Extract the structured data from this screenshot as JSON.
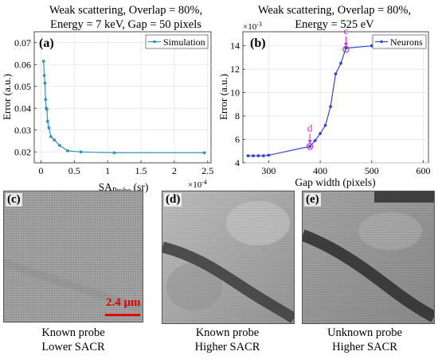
{
  "chart_data": [
    {
      "type": "line",
      "panel_label": "(a)",
      "title": [
        "Weak scattering, Overlap = 80%,",
        "Energy = 7 keV, Gap = 50 pixels"
      ],
      "xlabel_main": "SA",
      "xlabel_sub": "Probe",
      "xlabel_unit": "(sr)",
      "ylabel": "Error (a.u.)",
      "x_multiplier": "×10",
      "x_multiplier_exp": "-4",
      "xlim": [
        -0.1,
        2.55
      ],
      "ylim": [
        0.015,
        0.075
      ],
      "xticks": [
        0,
        0.5,
        1,
        1.5,
        2,
        2.5
      ],
      "xtick_labels": [
        "0",
        "0.5",
        "1",
        "1.5",
        "2",
        "2.5"
      ],
      "yticks": [
        0.02,
        0.03,
        0.04,
        0.05,
        0.06,
        0.07
      ],
      "ytick_labels": [
        "0.02",
        "0.03",
        "0.04",
        "0.05",
        "0.06",
        "0.07"
      ],
      "legend_position": "top-right",
      "series": [
        {
          "name": "Simulation",
          "color": "#2a93c9",
          "x": [
            0.04,
            0.05,
            0.06,
            0.07,
            0.08,
            0.09,
            0.1,
            0.12,
            0.15,
            0.2,
            0.28,
            0.4,
            0.6,
            1.1,
            2.45
          ],
          "y": [
            0.0615,
            0.055,
            0.0515,
            0.044,
            0.04,
            0.0395,
            0.034,
            0.031,
            0.027,
            0.0255,
            0.023,
            0.0205,
            0.02,
            0.0196,
            0.0196
          ]
        }
      ]
    },
    {
      "type": "line",
      "panel_label": "(b)",
      "title": [
        "Weak scattering, Overlap = 80%,",
        "Energy = 525 eV"
      ],
      "xlabel": "Gap width (pixels)",
      "ylabel": "Error (a.u.)",
      "y_multiplier": "×10",
      "y_multiplier_exp": "-3",
      "xlim": [
        250,
        610
      ],
      "ylim": [
        4,
        15.2
      ],
      "xticks": [
        300,
        400,
        500,
        600
      ],
      "xtick_labels": [
        "300",
        "400",
        "500",
        "600"
      ],
      "yticks": [
        4,
        6,
        8,
        10,
        12,
        14
      ],
      "ytick_labels": [
        "4",
        "6",
        "8",
        "10",
        "12",
        "14"
      ],
      "legend_position": "top-right",
      "series": [
        {
          "name": "Neurons",
          "color": "#3344dd",
          "x": [
            260,
            270,
            280,
            290,
            300,
            380,
            390,
            400,
            410,
            420,
            430,
            440,
            450,
            500,
            550,
            600
          ],
          "y": [
            4.6,
            4.6,
            4.6,
            4.6,
            4.65,
            5.4,
            5.9,
            6.5,
            7.2,
            8.8,
            11.6,
            12.5,
            13.8,
            14.0,
            14.0,
            14.0
          ]
        }
      ],
      "annotations": [
        {
          "label": "d",
          "x": 380,
          "y": 5.4,
          "color": "#cc22cc"
        },
        {
          "label": "c",
          "x": 450,
          "y": 13.7,
          "color": "#cc22cc"
        }
      ]
    }
  ],
  "panels": {
    "c": {
      "label": "(c)",
      "caption": [
        "Known probe",
        "Lower SACR"
      ],
      "scale_bar_label": "2.4 μm"
    },
    "d": {
      "label": "(d)",
      "caption": [
        "Known probe",
        "Higher SACR"
      ]
    },
    "e": {
      "label": "(e)",
      "caption": [
        "Unknown probe",
        "Higher SACR"
      ]
    }
  }
}
